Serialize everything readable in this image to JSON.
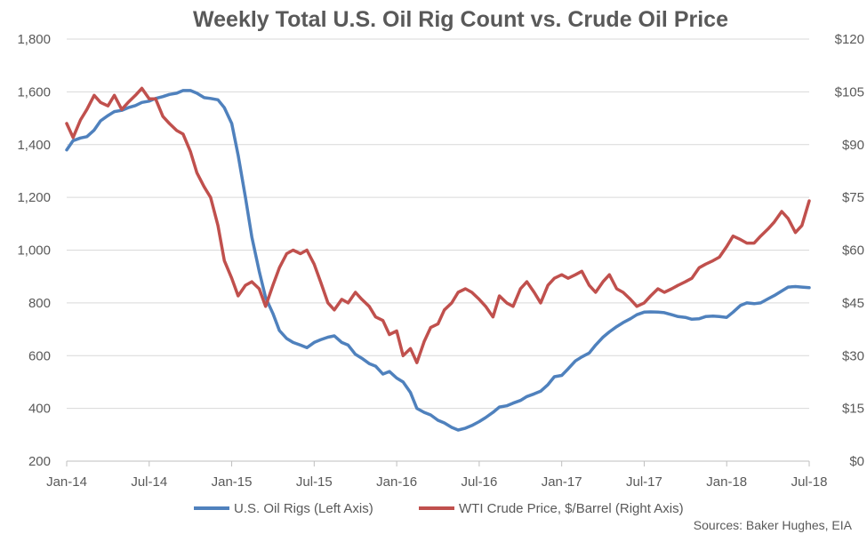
{
  "chart_data": {
    "type": "line",
    "title": "Weekly Total U.S. Oil Rig Count vs. Crude Oil Price",
    "x_range": [
      "2014-01",
      "2018-07"
    ],
    "x_tick_labels": [
      "Jan-14",
      "Jul-14",
      "Jan-15",
      "Jul-15",
      "Jan-16",
      "Jul-16",
      "Jan-17",
      "Jul-17",
      "Jan-18",
      "Jul-18"
    ],
    "y_left": {
      "min": 200,
      "max": 1800,
      "ticks": [
        "200",
        "400",
        "600",
        "800",
        "1,000",
        "1,200",
        "1,400",
        "1,600",
        "1,800"
      ]
    },
    "y_right": {
      "min": 0,
      "max": 120,
      "ticks": [
        "$0",
        "$15",
        "$30",
        "$45",
        "$60",
        "$75",
        "$90",
        "$105",
        "$120"
      ]
    },
    "grid": true,
    "legend_position": "bottom",
    "series": [
      {
        "name": "U.S. Oil Rigs (Left Axis)",
        "axis": "left",
        "color": "#4f81bd",
        "points": [
          [
            "2014-01",
            1380
          ],
          [
            "2014-01-15",
            1415
          ],
          [
            "2014-02",
            1425
          ],
          [
            "2014-02-15",
            1430
          ],
          [
            "2014-03",
            1455
          ],
          [
            "2014-03-15",
            1490
          ],
          [
            "2014-04",
            1510
          ],
          [
            "2014-04-15",
            1525
          ],
          [
            "2014-05",
            1530
          ],
          [
            "2014-05-15",
            1540
          ],
          [
            "2014-06",
            1548
          ],
          [
            "2014-06-15",
            1560
          ],
          [
            "2014-07",
            1565
          ],
          [
            "2014-07-15",
            1575
          ],
          [
            "2014-08",
            1582
          ],
          [
            "2014-08-15",
            1590
          ],
          [
            "2014-09",
            1595
          ],
          [
            "2014-09-15",
            1605
          ],
          [
            "2014-10",
            1605
          ],
          [
            "2014-10-15",
            1595
          ],
          [
            "2014-11",
            1578
          ],
          [
            "2014-11-15",
            1575
          ],
          [
            "2014-12",
            1570
          ],
          [
            "2014-12-15",
            1540
          ],
          [
            "2015-01",
            1480
          ],
          [
            "2015-01-15",
            1360
          ],
          [
            "2015-02",
            1200
          ],
          [
            "2015-02-15",
            1050
          ],
          [
            "2015-03",
            920
          ],
          [
            "2015-03-15",
            820
          ],
          [
            "2015-04",
            760
          ],
          [
            "2015-04-15",
            695
          ],
          [
            "2015-05",
            665
          ],
          [
            "2015-05-15",
            650
          ],
          [
            "2015-06",
            640
          ],
          [
            "2015-06-15",
            630
          ],
          [
            "2015-07",
            650
          ],
          [
            "2015-07-15",
            660
          ],
          [
            "2015-08",
            670
          ],
          [
            "2015-08-15",
            675
          ],
          [
            "2015-09",
            650
          ],
          [
            "2015-09-15",
            640
          ],
          [
            "2015-10",
            605
          ],
          [
            "2015-10-15",
            590
          ],
          [
            "2015-11",
            570
          ],
          [
            "2015-11-15",
            560
          ],
          [
            "2015-12",
            530
          ],
          [
            "2015-12-15",
            540
          ],
          [
            "2016-01",
            515
          ],
          [
            "2016-01-15",
            500
          ],
          [
            "2016-02",
            460
          ],
          [
            "2016-02-15",
            400
          ],
          [
            "2016-03",
            385
          ],
          [
            "2016-03-15",
            375
          ],
          [
            "2016-04",
            355
          ],
          [
            "2016-04-15",
            345
          ],
          [
            "2016-05",
            328
          ],
          [
            "2016-05-15",
            318
          ],
          [
            "2016-06",
            325
          ],
          [
            "2016-06-15",
            335
          ],
          [
            "2016-07",
            350
          ],
          [
            "2016-07-15",
            365
          ],
          [
            "2016-08",
            385
          ],
          [
            "2016-08-15",
            405
          ],
          [
            "2016-09",
            410
          ],
          [
            "2016-09-15",
            420
          ],
          [
            "2016-10",
            430
          ],
          [
            "2016-10-15",
            445
          ],
          [
            "2016-11",
            455
          ],
          [
            "2016-11-15",
            465
          ],
          [
            "2016-12",
            490
          ],
          [
            "2016-12-15",
            520
          ],
          [
            "2017-01",
            525
          ],
          [
            "2017-01-15",
            550
          ],
          [
            "2017-02",
            580
          ],
          [
            "2017-02-15",
            595
          ],
          [
            "2017-03",
            610
          ],
          [
            "2017-03-15",
            640
          ],
          [
            "2017-04",
            670
          ],
          [
            "2017-04-15",
            690
          ],
          [
            "2017-05",
            710
          ],
          [
            "2017-05-15",
            725
          ],
          [
            "2017-06",
            740
          ],
          [
            "2017-06-15",
            755
          ],
          [
            "2017-07",
            765
          ],
          [
            "2017-07-15",
            766
          ],
          [
            "2017-08",
            765
          ],
          [
            "2017-08-15",
            763
          ],
          [
            "2017-09",
            755
          ],
          [
            "2017-09-15",
            748
          ],
          [
            "2017-10",
            745
          ],
          [
            "2017-10-15",
            738
          ],
          [
            "2017-11",
            740
          ],
          [
            "2017-11-15",
            748
          ],
          [
            "2017-12",
            750
          ],
          [
            "2017-12-15",
            748
          ],
          [
            "2018-01",
            745
          ],
          [
            "2018-01-15",
            765
          ],
          [
            "2018-02",
            790
          ],
          [
            "2018-02-15",
            800
          ],
          [
            "2018-03",
            797
          ],
          [
            "2018-03-15",
            800
          ],
          [
            "2018-04",
            815
          ],
          [
            "2018-04-15",
            828
          ],
          [
            "2018-05",
            845
          ],
          [
            "2018-05-15",
            860
          ],
          [
            "2018-06",
            862
          ],
          [
            "2018-06-15",
            860
          ],
          [
            "2018-07",
            858
          ]
        ]
      },
      {
        "name": "WTI Crude Price, $/Barrel (Right Axis)",
        "axis": "right",
        "color": "#c0504d",
        "points": [
          [
            "2014-01",
            96
          ],
          [
            "2014-01-15",
            92
          ],
          [
            "2014-02",
            97
          ],
          [
            "2014-02-15",
            100
          ],
          [
            "2014-03",
            104
          ],
          [
            "2014-03-15",
            102
          ],
          [
            "2014-04",
            101
          ],
          [
            "2014-04-15",
            104
          ],
          [
            "2014-05",
            100
          ],
          [
            "2014-05-15",
            102
          ],
          [
            "2014-06",
            104
          ],
          [
            "2014-06-15",
            106
          ],
          [
            "2014-07",
            103
          ],
          [
            "2014-07-15",
            103
          ],
          [
            "2014-08",
            98
          ],
          [
            "2014-08-15",
            96
          ],
          [
            "2014-09",
            94
          ],
          [
            "2014-09-15",
            93
          ],
          [
            "2014-10",
            88
          ],
          [
            "2014-10-15",
            82
          ],
          [
            "2014-11",
            78
          ],
          [
            "2014-11-15",
            75
          ],
          [
            "2014-12",
            67
          ],
          [
            "2014-12-15",
            57
          ],
          [
            "2015-01",
            52
          ],
          [
            "2015-01-15",
            47
          ],
          [
            "2015-02",
            50
          ],
          [
            "2015-02-15",
            51
          ],
          [
            "2015-03",
            49
          ],
          [
            "2015-03-15",
            44
          ],
          [
            "2015-04",
            50
          ],
          [
            "2015-04-15",
            55
          ],
          [
            "2015-05",
            59
          ],
          [
            "2015-05-15",
            60
          ],
          [
            "2015-06",
            59
          ],
          [
            "2015-06-15",
            60
          ],
          [
            "2015-07",
            56
          ],
          [
            "2015-07-15",
            51
          ],
          [
            "2015-08",
            45
          ],
          [
            "2015-08-15",
            43
          ],
          [
            "2015-09",
            46
          ],
          [
            "2015-09-15",
            45
          ],
          [
            "2015-10",
            48
          ],
          [
            "2015-10-15",
            46
          ],
          [
            "2015-11",
            44
          ],
          [
            "2015-11-15",
            41
          ],
          [
            "2015-12",
            40
          ],
          [
            "2015-12-15",
            36
          ],
          [
            "2016-01",
            37
          ],
          [
            "2016-01-15",
            30
          ],
          [
            "2016-02",
            32
          ],
          [
            "2016-02-15",
            28
          ],
          [
            "2016-03",
            34
          ],
          [
            "2016-03-15",
            38
          ],
          [
            "2016-04",
            39
          ],
          [
            "2016-04-15",
            43
          ],
          [
            "2016-05",
            45
          ],
          [
            "2016-05-15",
            48
          ],
          [
            "2016-06",
            49
          ],
          [
            "2016-06-15",
            48
          ],
          [
            "2016-07",
            46
          ],
          [
            "2016-07-15",
            44
          ],
          [
            "2016-08",
            41
          ],
          [
            "2016-08-15",
            47
          ],
          [
            "2016-09",
            45
          ],
          [
            "2016-09-15",
            44
          ],
          [
            "2016-10",
            49
          ],
          [
            "2016-10-15",
            51
          ],
          [
            "2016-11",
            48
          ],
          [
            "2016-11-15",
            45
          ],
          [
            "2016-12",
            50
          ],
          [
            "2016-12-15",
            52
          ],
          [
            "2017-01",
            53
          ],
          [
            "2017-01-15",
            52
          ],
          [
            "2017-02",
            53
          ],
          [
            "2017-02-15",
            54
          ],
          [
            "2017-03",
            50
          ],
          [
            "2017-03-15",
            48
          ],
          [
            "2017-04",
            51
          ],
          [
            "2017-04-15",
            53
          ],
          [
            "2017-05",
            49
          ],
          [
            "2017-05-15",
            48
          ],
          [
            "2017-06",
            46
          ],
          [
            "2017-06-15",
            44
          ],
          [
            "2017-07",
            45
          ],
          [
            "2017-07-15",
            47
          ],
          [
            "2017-08",
            49
          ],
          [
            "2017-08-15",
            48
          ],
          [
            "2017-09",
            49
          ],
          [
            "2017-09-15",
            50
          ],
          [
            "2017-10",
            51
          ],
          [
            "2017-10-15",
            52
          ],
          [
            "2017-11",
            55
          ],
          [
            "2017-11-15",
            56
          ],
          [
            "2017-12",
            57
          ],
          [
            "2017-12-15",
            58
          ],
          [
            "2018-01",
            61
          ],
          [
            "2018-01-15",
            64
          ],
          [
            "2018-02",
            63
          ],
          [
            "2018-02-15",
            62
          ],
          [
            "2018-03",
            62
          ],
          [
            "2018-03-15",
            64
          ],
          [
            "2018-04",
            66
          ],
          [
            "2018-04-15",
            68
          ],
          [
            "2018-05",
            71
          ],
          [
            "2018-05-15",
            69
          ],
          [
            "2018-06",
            65
          ],
          [
            "2018-06-15",
            67
          ],
          [
            "2018-07",
            74
          ]
        ]
      }
    ],
    "source": "Sources: Baker Hughes, EIA"
  }
}
